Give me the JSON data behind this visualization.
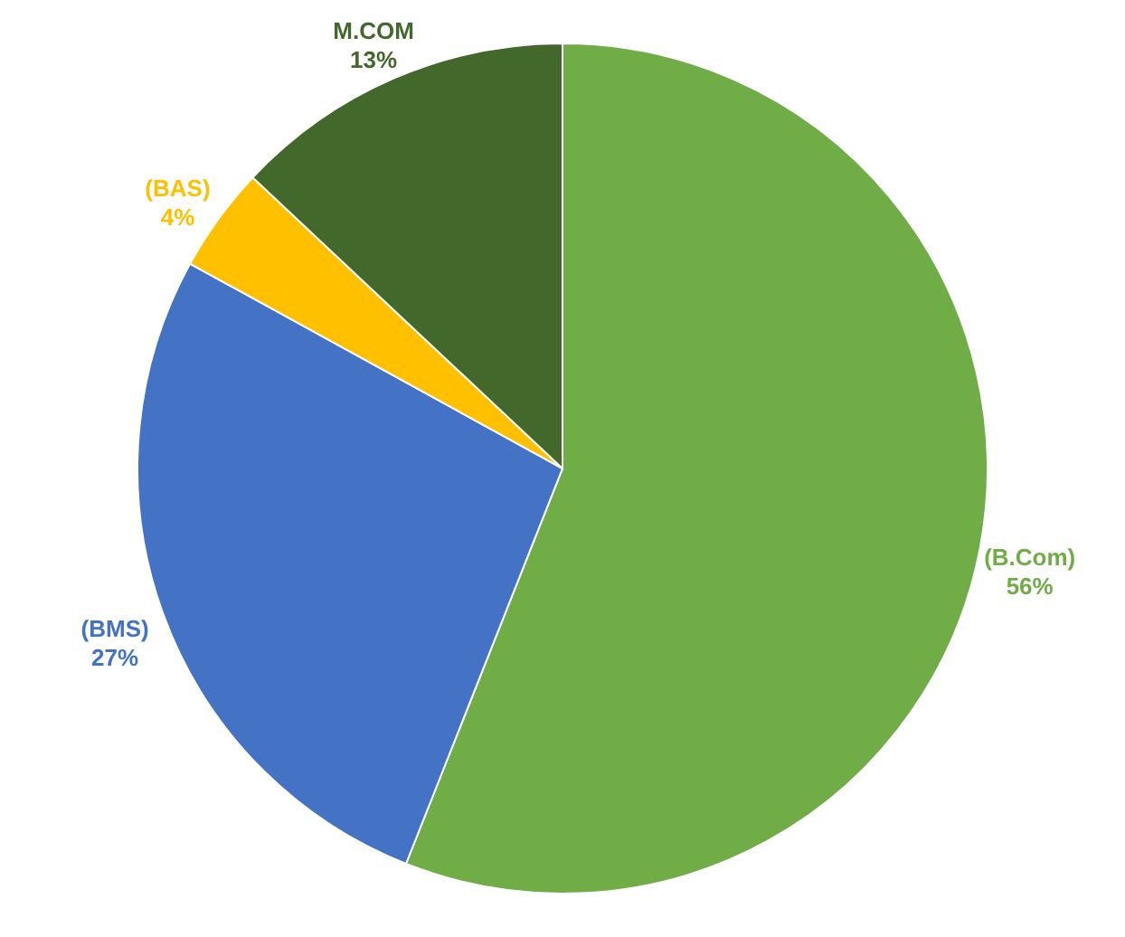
{
  "chart_data": {
    "type": "pie",
    "categories": [
      "(B.Com)",
      "(BMS)",
      "(BAS)",
      "M.COM"
    ],
    "values": [
      56,
      27,
      4,
      13
    ],
    "colors": [
      "#70ad47",
      "#4472c4",
      "#ffc000",
      "#43682b"
    ],
    "value_labels": [
      "56%",
      "27%",
      "4%",
      "13%"
    ]
  }
}
